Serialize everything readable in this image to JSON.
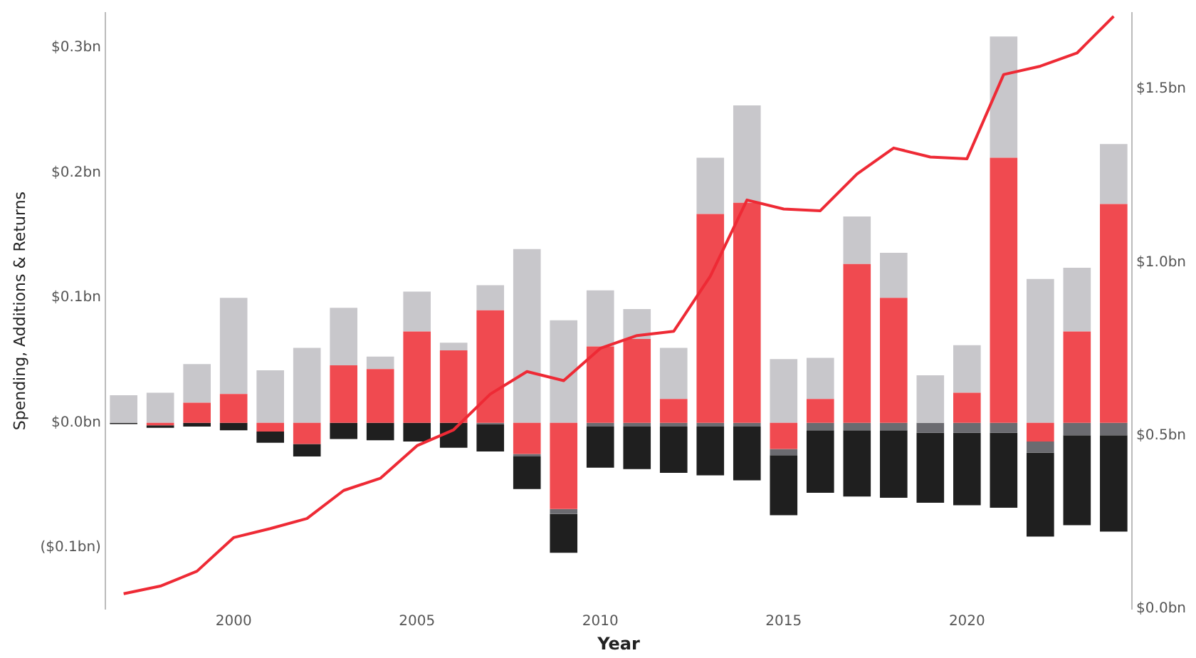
{
  "chart_data": {
    "type": "bar",
    "stacked": true,
    "xlabel": "Year",
    "ylabel": "Spending, Additions & Returns",
    "categories": [
      null,
      null,
      null,
      "2000",
      null,
      null,
      null,
      null,
      "2005",
      null,
      null,
      null,
      null,
      "2010",
      null,
      null,
      null,
      null,
      "2015",
      null,
      null,
      null,
      null,
      "2020",
      null,
      null,
      null,
      null
    ],
    "series": [
      {
        "color": "#f04a50",
        "values": [
          0,
          -0.002,
          0.016,
          0.023,
          -0.007,
          -0.017,
          0.046,
          0.043,
          0.073,
          0.058,
          0.09,
          -0.025,
          -0.069,
          0.061,
          0.067,
          0.019,
          0.167,
          0.176,
          -0.021,
          0.019,
          0.127,
          0.1,
          0,
          0.024,
          0.212,
          -0.015,
          0.073,
          0.175
        ]
      },
      {
        "color": "#c8c7cb",
        "values": [
          0.022,
          0.024,
          0.031,
          0.077,
          0.042,
          0.06,
          0.046,
          0.01,
          0.032,
          0.006,
          0.02,
          0.139,
          0.082,
          0.045,
          0.024,
          0.041,
          0.045,
          0.078,
          0.051,
          0.033,
          0.038,
          0.036,
          0.038,
          0.038,
          0.097,
          0.115,
          0.051,
          0.048
        ]
      },
      {
        "color": "#6b6b70",
        "values": [
          0,
          0,
          0,
          0,
          0,
          0,
          0,
          0,
          0,
          0,
          -0.001,
          -0.002,
          -0.004,
          -0.003,
          -0.003,
          -0.003,
          -0.003,
          -0.003,
          -0.005,
          -0.006,
          -0.006,
          -0.006,
          -0.008,
          -0.008,
          -0.008,
          -0.009,
          -0.01,
          -0.01
        ]
      },
      {
        "color": "#1f1f1f",
        "values": [
          -0.001,
          -0.002,
          -0.003,
          -0.006,
          -0.009,
          -0.01,
          -0.013,
          -0.014,
          -0.015,
          -0.02,
          -0.022,
          -0.026,
          -0.031,
          -0.033,
          -0.034,
          -0.037,
          -0.039,
          -0.043,
          -0.048,
          -0.05,
          -0.053,
          -0.054,
          -0.056,
          -0.058,
          -0.06,
          -0.067,
          -0.072,
          -0.077
        ]
      },
      {
        "type": "line",
        "axis": "y2",
        "color": "#ee2a35",
        "values": [
          0.044,
          0.066,
          0.109,
          0.206,
          0.232,
          0.261,
          0.342,
          0.377,
          0.471,
          0.517,
          0.62,
          0.685,
          0.659,
          0.752,
          0.789,
          0.801,
          0.96,
          1.18,
          1.154,
          1.149,
          1.255,
          1.33,
          1.304,
          1.299,
          1.542,
          1.566,
          1.604,
          1.71
        ]
      }
    ],
    "ylim": [
      -0.149,
      0.328
    ],
    "yticks": [
      {
        "value": -0.1,
        "label": "($0.1bn)"
      },
      {
        "value": 0,
        "label": "$0.0bn"
      },
      {
        "value": 0.1,
        "label": "$0.1bn"
      },
      {
        "value": 0.2,
        "label": "$0.2bn"
      },
      {
        "value": 0.3,
        "label": "$0.3bn"
      }
    ],
    "y2lim": [
      0,
      1.72
    ],
    "y2ticks": [
      {
        "value": 0,
        "label": "$0.0bn"
      },
      {
        "value": 0.5,
        "label": "$0.5bn"
      },
      {
        "value": 1,
        "label": "$1.0bn"
      },
      {
        "value": 1.5,
        "label": "$1.5bn"
      }
    ],
    "marker": "none",
    "line_style": "solid",
    "grid": false,
    "legend": false
  }
}
